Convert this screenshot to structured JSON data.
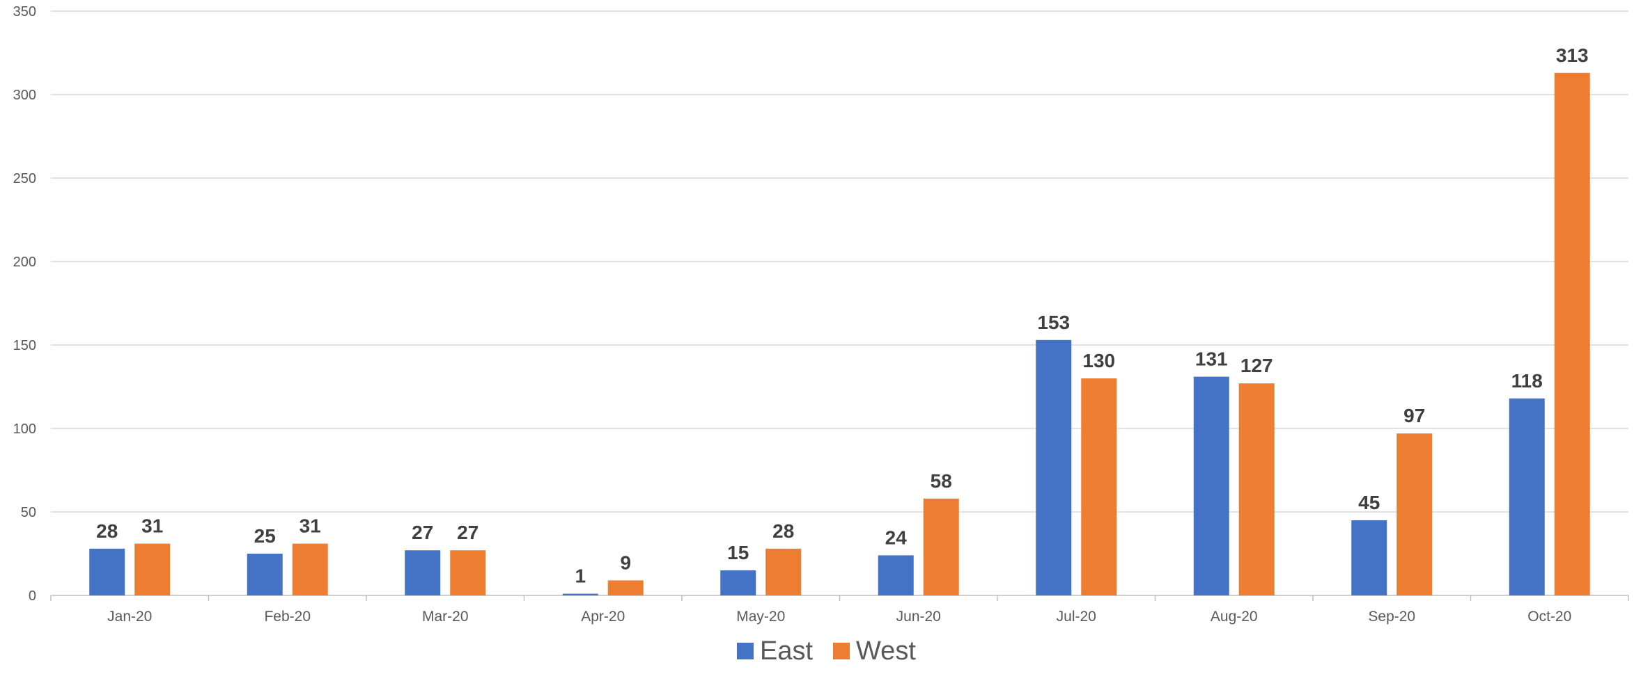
{
  "chart_data": {
    "type": "bar",
    "title": "",
    "xlabel": "",
    "ylabel": "",
    "categories": [
      "Jan-20",
      "Feb-20",
      "Mar-20",
      "Apr-20",
      "May-20",
      "Jun-20",
      "Jul-20",
      "Aug-20",
      "Sep-20",
      "Oct-20"
    ],
    "series": [
      {
        "name": "East",
        "color": "#4472c4",
        "values": [
          28,
          25,
          27,
          1,
          15,
          24,
          153,
          131,
          45,
          118
        ]
      },
      {
        "name": "West",
        "color": "#ed7d31",
        "values": [
          31,
          31,
          27,
          9,
          28,
          58,
          130,
          127,
          97,
          313
        ]
      }
    ],
    "ylim": [
      0,
      350
    ],
    "yticks": [
      0,
      50,
      100,
      150,
      200,
      250,
      300,
      350
    ],
    "grid": true,
    "data_labels": true,
    "legend_position": "bottom"
  }
}
